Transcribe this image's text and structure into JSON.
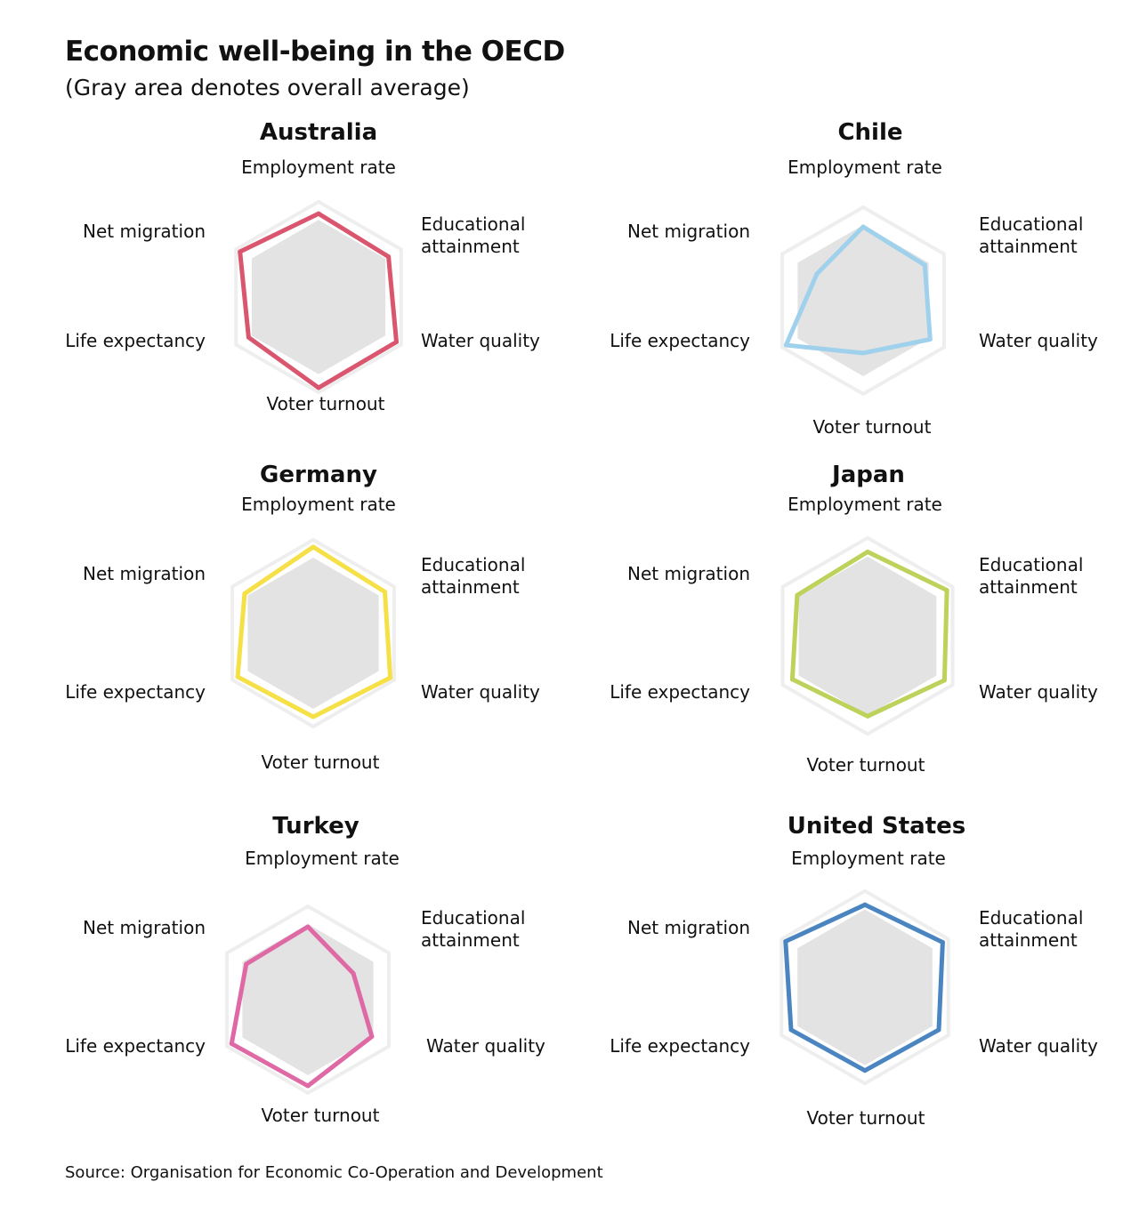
{
  "title": "Economic well-being in the OECD",
  "subtitle": "(Gray area denotes overall average)",
  "source": "Source: Organisation for Economic Co-Operation and Development",
  "colors": {
    "average_fill": "#e3e3e3",
    "grid": "#eeeeee",
    "australia": "#d9566e",
    "chile": "#9fd1ec",
    "germany": "#f5e048",
    "japan": "#bcd25a",
    "turkey": "#df69a4",
    "united_states": "#4a85c2"
  },
  "chart_data": [
    {
      "type": "radar",
      "title": "Australia",
      "axes": [
        "Employment rate",
        "Educational attainment",
        "Water quality",
        "Voter turnout",
        "Life expectancy",
        "Net migration"
      ],
      "series": [
        {
          "name": "Australia",
          "values": [
            0.92,
            0.89,
            0.99,
            1.0,
            0.89,
            1.0
          ]
        }
      ],
      "average": [
        0.85,
        0.85,
        0.85,
        0.85,
        0.85,
        0.85
      ]
    },
    {
      "type": "radar",
      "title": "Chile",
      "axes": [
        "Employment rate",
        "Educational attainment",
        "Water quality",
        "Voter turnout",
        "Life expectancy",
        "Net migration"
      ],
      "series": [
        {
          "name": "Chile",
          "values": [
            0.83,
            0.8,
            0.87,
            0.59,
            1.0,
            0.6
          ]
        }
      ],
      "average": [
        0.85,
        0.85,
        0.85,
        0.85,
        0.85,
        0.85
      ]
    },
    {
      "type": "radar",
      "title": "Germany",
      "axes": [
        "Employment rate",
        "Educational attainment",
        "Water quality",
        "Voter turnout",
        "Life expectancy",
        "Net migration"
      ],
      "series": [
        {
          "name": "Germany",
          "values": [
            0.97,
            0.93,
            1.0,
            0.94,
            0.98,
            0.89
          ]
        }
      ],
      "average": [
        0.85,
        0.85,
        0.85,
        0.85,
        0.85,
        0.85
      ]
    },
    {
      "type": "radar",
      "title": "Japan",
      "axes": [
        "Employment rate",
        "Educational attainment",
        "Water quality",
        "Voter turnout",
        "Life expectancy",
        "Net migration"
      ],
      "series": [
        {
          "name": "Japan",
          "values": [
            0.9,
            0.98,
            0.95,
            0.86,
            0.93,
            0.87
          ]
        }
      ],
      "average": [
        0.85,
        0.85,
        0.85,
        0.85,
        0.85,
        0.85
      ]
    },
    {
      "type": "radar",
      "title": "Turkey",
      "axes": [
        "Employment rate",
        "Educational attainment",
        "Water quality",
        "Voter turnout",
        "Life expectancy",
        "Net migration"
      ],
      "series": [
        {
          "name": "Turkey",
          "values": [
            0.82,
            0.59,
            0.83,
            0.97,
            0.99,
            0.8
          ]
        }
      ],
      "average": [
        0.85,
        0.85,
        0.85,
        0.85,
        0.85,
        0.85
      ]
    },
    {
      "type": "radar",
      "title": "United States",
      "axes": [
        "Employment rate",
        "Educational attainment",
        "Water quality",
        "Voter turnout",
        "Life expectancy",
        "Net migration"
      ],
      "series": [
        {
          "name": "United States",
          "values": [
            0.9,
            0.98,
            0.93,
            0.91,
            0.93,
            1.0
          ]
        }
      ],
      "average": [
        0.85,
        0.85,
        0.85,
        0.85,
        0.85,
        0.85
      ]
    }
  ]
}
